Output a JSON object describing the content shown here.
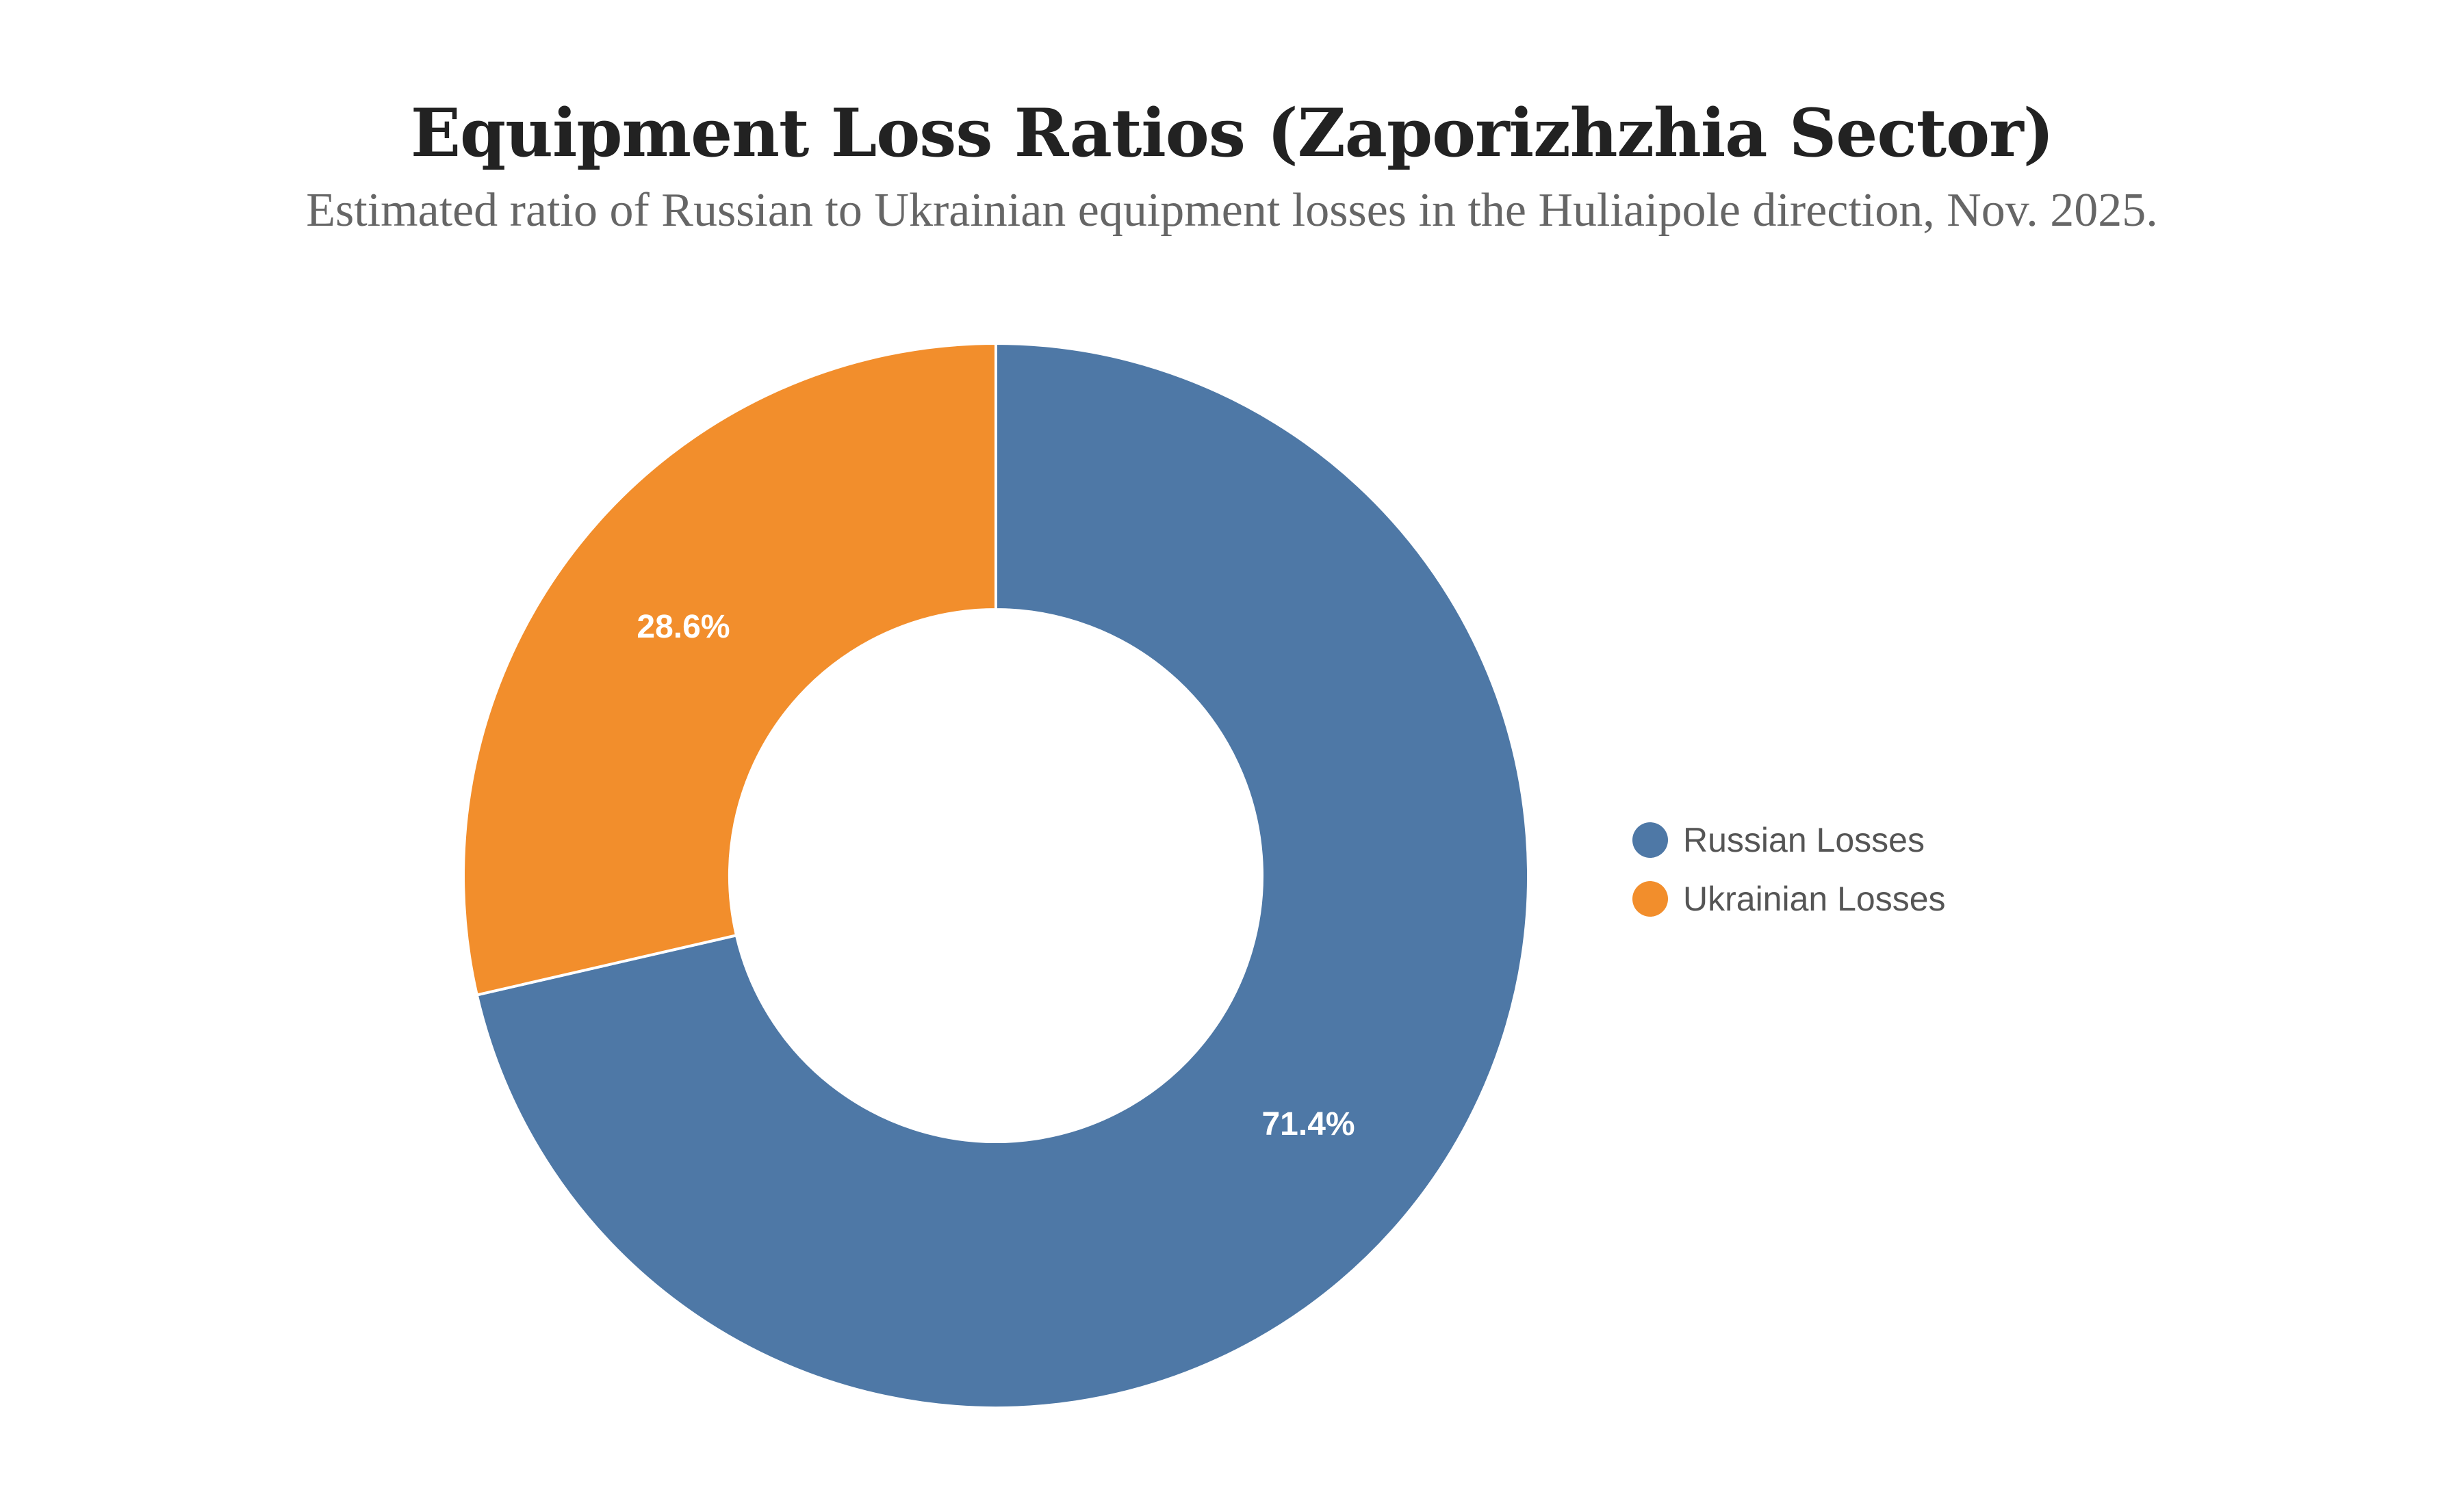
{
  "chart_data": {
    "type": "pie",
    "title": "Equipment Loss Ratios (Zaporizhzhia Sector)",
    "subtitle": "Estimated ratio of Russian to Ukrainian equipment losses in the Huliaipole direction, Nov. 2025.",
    "hole": 0.5,
    "start_angle": "12 o'clock",
    "direction": "clockwise",
    "slices": [
      {
        "label": "Russian Losses",
        "value": 71.4,
        "text": "71.4%",
        "color": "#4e78a6"
      },
      {
        "label": "Ukrainian Losses",
        "value": 28.6,
        "text": "28.6%",
        "color": "#f28e2c"
      }
    ],
    "legend": {
      "position": "right",
      "entries": [
        "Russian Losses",
        "Ukrainian Losses"
      ]
    }
  }
}
